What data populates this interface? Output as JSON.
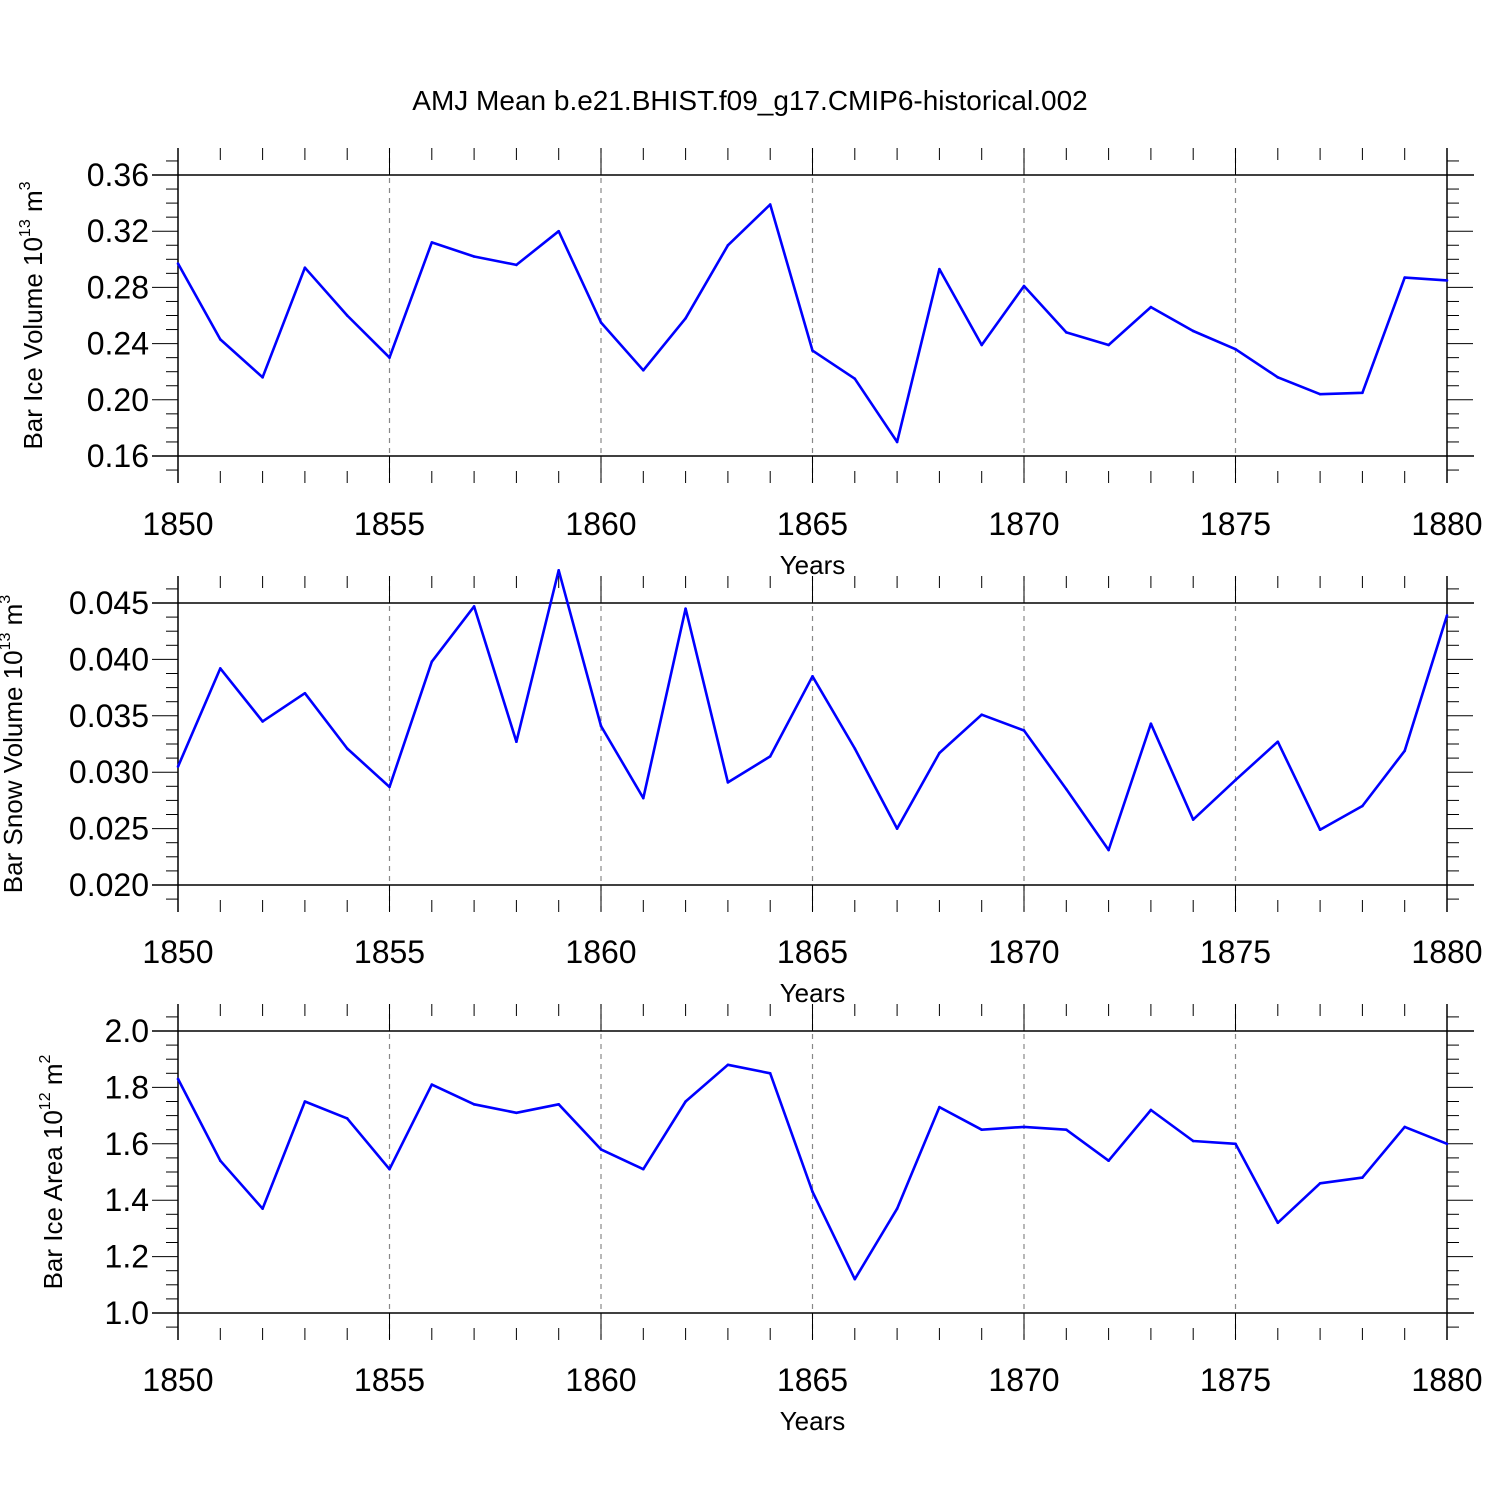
{
  "figure_title": "AMJ Mean b.e21.BHIST.f09_g17.CMIP6-historical.002",
  "colors": {
    "line": "#0000ff",
    "axis": "#000000",
    "grid": "#888888"
  },
  "chart_data": [
    {
      "type": "line",
      "title": "",
      "xlabel": "Years",
      "ylabel": {
        "main": "Bar Ice Volume 10",
        "sup": "13",
        "unit": " m",
        "unit_sup": "3"
      },
      "xlim": [
        1850,
        1880
      ],
      "ylim": [
        0.15,
        0.36
      ],
      "x_ticks": [
        "1850",
        "1855",
        "1860",
        "1865",
        "1870",
        "1875",
        "1880"
      ],
      "x_tick_values": [
        1850,
        1855,
        1860,
        1865,
        1870,
        1875,
        1880
      ],
      "y_ticks": [
        "0.16",
        "0.20",
        "0.24",
        "0.28",
        "0.32",
        "0.36"
      ],
      "y_tick_values": [
        0.16,
        0.2,
        0.24,
        0.28,
        0.32,
        0.36
      ],
      "grid": "vertical dashed at major x ticks",
      "x": [
        1850,
        1851,
        1852,
        1853,
        1854,
        1855,
        1856,
        1857,
        1858,
        1859,
        1860,
        1861,
        1862,
        1863,
        1864,
        1865,
        1866,
        1867,
        1868,
        1869,
        1870,
        1871,
        1872,
        1873,
        1874,
        1875,
        1876,
        1877,
        1878,
        1879,
        1880
      ],
      "values": [
        0.297,
        0.243,
        0.216,
        0.294,
        0.26,
        0.23,
        0.312,
        0.302,
        0.296,
        0.32,
        0.255,
        0.221,
        0.258,
        0.31,
        0.339,
        0.235,
        0.215,
        0.17,
        0.293,
        0.239,
        0.281,
        0.248,
        0.239,
        0.266,
        0.249,
        0.236,
        0.216,
        0.204,
        0.205,
        0.287,
        0.285
      ]
    },
    {
      "type": "line",
      "title": "",
      "xlabel": "Years",
      "ylabel": {
        "main": "Bar Snow Volume 10",
        "sup": "13",
        "unit": " m",
        "unit_sup": "3"
      },
      "xlim": [
        1850,
        1880
      ],
      "ylim": [
        0.0185,
        0.048
      ],
      "x_ticks": [
        "1850",
        "1855",
        "1860",
        "1865",
        "1870",
        "1875",
        "1880"
      ],
      "x_tick_values": [
        1850,
        1855,
        1860,
        1865,
        1870,
        1875,
        1880
      ],
      "y_ticks": [
        "0.020",
        "0.025",
        "0.030",
        "0.035",
        "0.040",
        "0.045"
      ],
      "y_tick_values": [
        0.02,
        0.025,
        0.03,
        0.035,
        0.04,
        0.045
      ],
      "grid": "vertical dashed at major x ticks",
      "x": [
        1850,
        1851,
        1852,
        1853,
        1854,
        1855,
        1856,
        1857,
        1858,
        1859,
        1860,
        1861,
        1862,
        1863,
        1864,
        1865,
        1866,
        1867,
        1868,
        1869,
        1870,
        1871,
        1872,
        1873,
        1874,
        1875,
        1876,
        1877,
        1878,
        1879,
        1880
      ],
      "values": [
        0.0305,
        0.0392,
        0.0345,
        0.037,
        0.0321,
        0.0287,
        0.0398,
        0.0447,
        0.0327,
        0.0479,
        0.0341,
        0.0277,
        0.0445,
        0.0291,
        0.0314,
        0.0385,
        0.0321,
        0.025,
        0.0317,
        0.0351,
        0.0337,
        0.0285,
        0.0231,
        0.0343,
        0.0258,
        0.0293,
        0.0327,
        0.0249,
        0.027,
        0.0319,
        0.0439
      ]
    },
    {
      "type": "line",
      "title": "",
      "xlabel": "Years",
      "ylabel": {
        "main": "Bar Ice Area 10",
        "sup": "12",
        "unit": " m",
        "unit_sup": "2"
      },
      "xlim": [
        1850,
        1880
      ],
      "ylim": [
        0.9,
        2.0
      ],
      "x_ticks": [
        "1850",
        "1855",
        "1860",
        "1865",
        "1870",
        "1875",
        "1880"
      ],
      "x_tick_values": [
        1850,
        1855,
        1860,
        1865,
        1870,
        1875,
        1880
      ],
      "y_ticks": [
        "1.0",
        "1.2",
        "1.4",
        "1.6",
        "1.8",
        "2.0"
      ],
      "y_tick_values": [
        1.0,
        1.2,
        1.4,
        1.6,
        1.8,
        2.0
      ],
      "grid": "vertical dashed at major x ticks",
      "x": [
        1850,
        1851,
        1852,
        1853,
        1854,
        1855,
        1856,
        1857,
        1858,
        1859,
        1860,
        1861,
        1862,
        1863,
        1864,
        1865,
        1866,
        1867,
        1868,
        1869,
        1870,
        1871,
        1872,
        1873,
        1874,
        1875,
        1876,
        1877,
        1878,
        1879,
        1880
      ],
      "values": [
        1.83,
        1.54,
        1.37,
        1.75,
        1.69,
        1.51,
        1.81,
        1.74,
        1.71,
        1.74,
        1.58,
        1.51,
        1.75,
        1.88,
        1.85,
        1.43,
        1.12,
        1.37,
        1.73,
        1.65,
        1.66,
        1.65,
        1.54,
        1.72,
        1.61,
        1.6,
        1.32,
        1.46,
        1.48,
        1.66,
        1.6
      ]
    }
  ]
}
